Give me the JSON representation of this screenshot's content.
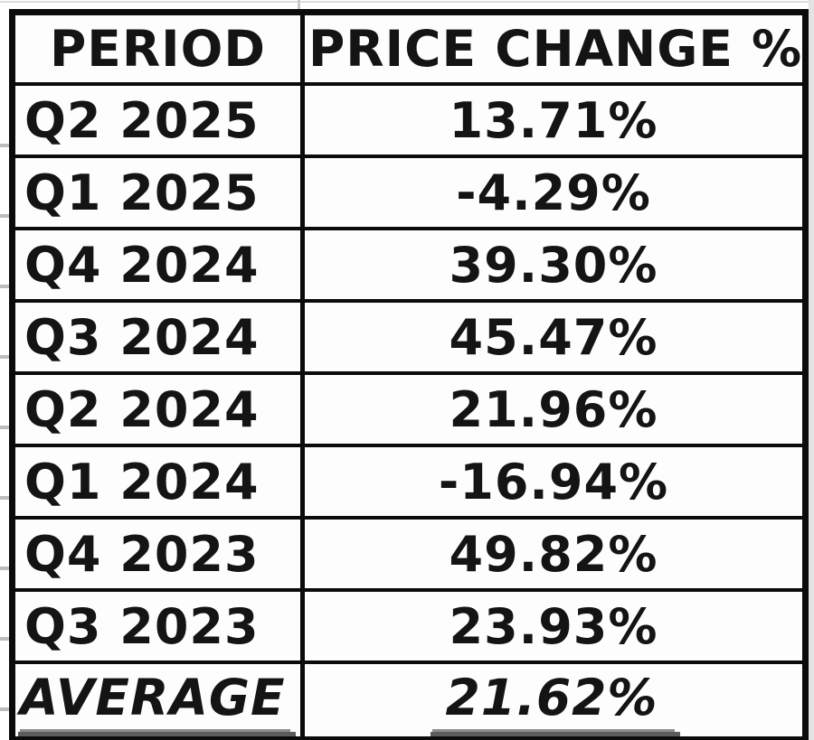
{
  "table": {
    "headers": {
      "period": "PERIOD",
      "price_change": "PRICE CHANGE %"
    },
    "rows": [
      {
        "period": "Q2 2025",
        "value": "13.71%"
      },
      {
        "period": "Q1 2025",
        "value": "-4.29%"
      },
      {
        "period": "Q4 2024",
        "value": "39.30%"
      },
      {
        "period": "Q3 2024",
        "value": "45.47%"
      },
      {
        "period": "Q2 2024",
        "value": "21.96%"
      },
      {
        "period": "Q1 2024",
        "value": "-16.94%"
      },
      {
        "period": "Q4 2023",
        "value": "49.82%"
      },
      {
        "period": "Q3 2023",
        "value": "23.93%"
      }
    ],
    "summary": {
      "label": "AVERAGE",
      "value": "21.62%"
    }
  },
  "colors": {
    "text": "#141414",
    "border": "#0b0b0b",
    "cell_background": "#fdfdfd",
    "summary_underline": "#5c5c5c",
    "gridline": "#c9c9c9"
  }
}
